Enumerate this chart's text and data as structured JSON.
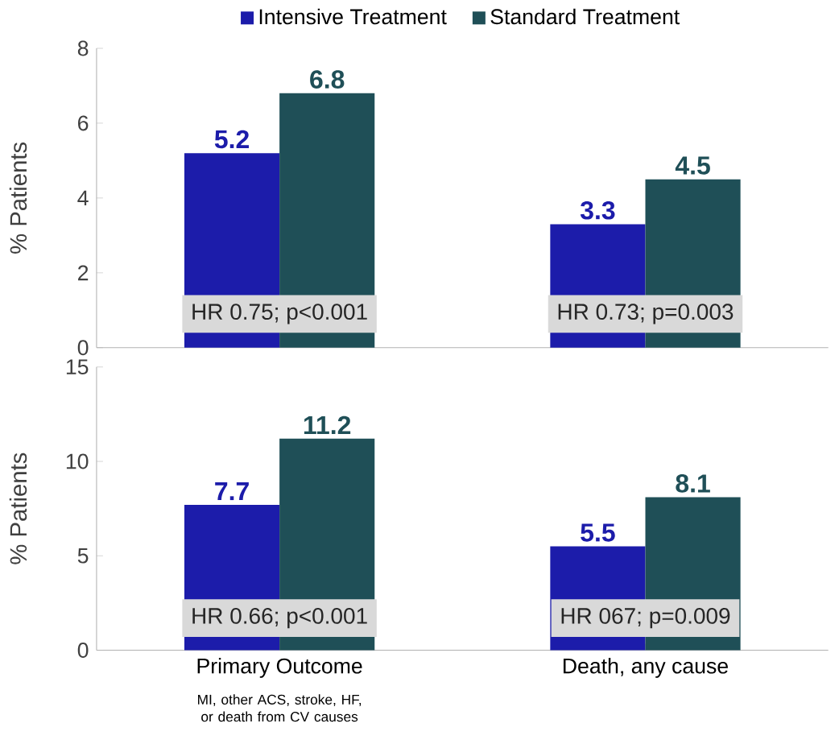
{
  "chart_data": [
    {
      "type": "bar",
      "categories": [
        "Primary Outcome",
        "Death, any cause"
      ],
      "ylabel": "% Patients",
      "ylim": [
        0,
        8
      ],
      "yticks": [
        0,
        2,
        4,
        6,
        8
      ],
      "tick_labels": "y",
      "legend": "top",
      "data_labels": true,
      "series": [
        {
          "name": "Intensive Treatment",
          "color": "#1c1caa",
          "values": [
            5.2,
            3.3
          ]
        },
        {
          "name": "Standard Treatment",
          "color": "#1f4f57",
          "values": [
            6.8,
            4.5
          ]
        }
      ],
      "annotations": [
        {
          "text": "HR 0.75; p<0.001",
          "x": "Primary Outcome",
          "y": 0.9
        },
        {
          "text": "HR 0.73; p=0.003",
          "x": "Death, any cause",
          "y": 0.9
        }
      ]
    },
    {
      "type": "bar",
      "categories": [
        "Primary Outcome",
        "Death, any cause"
      ],
      "ylabel": "% Patients",
      "ylim": [
        0,
        15
      ],
      "yticks": [
        0,
        5,
        10,
        15
      ],
      "data_labels": true,
      "series": [
        {
          "color": "#1c1caa",
          "values": [
            7.7,
            5.5
          ]
        },
        {
          "color": "#1f4f57",
          "values": [
            11.2,
            8.1
          ]
        }
      ],
      "annotations": [
        {
          "text": "HR 0.66; p<0.001",
          "x": "Primary Outcome",
          "y": 1.7
        },
        {
          "text": "HR 067; p=0.009",
          "x": "Death, any cause",
          "y": 1.7
        },
        "MI, other ACS, stroke, HF, or death from CV causes"
      ]
    }
  ]
}
